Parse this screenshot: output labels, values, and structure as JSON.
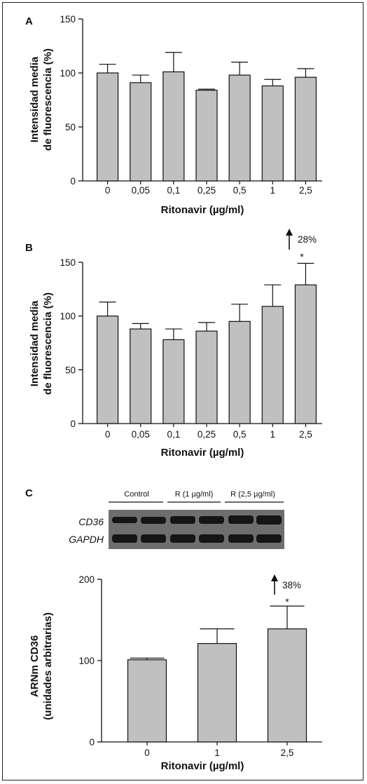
{
  "colors": {
    "bar_fill": "#c0c0c0",
    "axis": "#111111",
    "blot_bg": "#6e6e6e",
    "band": "#151515"
  },
  "charts": [
    {
      "panel": "A",
      "ylabel": [
        "Intensidad media",
        "de fluorescencia (%)"
      ],
      "xlabel": "Ritonavir (µg/ml)",
      "yticks": [
        "0",
        "50",
        "100",
        "150"
      ]
    },
    {
      "panel": "B",
      "ylabel": [
        "Intensidad media",
        "de fluorescencia (%)"
      ],
      "xlabel": "Ritonavir (µg/ml)",
      "yticks": [
        "0",
        "50",
        "100",
        "150"
      ],
      "annotation": {
        "text": "28%",
        "star": "*"
      }
    },
    {
      "panel": "C",
      "ylabel": [
        "ARNm CD36",
        "(unidades arbitrarias)"
      ],
      "xlabel": "Ritonavir (µg/ml)",
      "yticks": [
        "0",
        "100",
        "200"
      ],
      "annotation": {
        "text": "38%",
        "star": "*"
      },
      "blot": {
        "groups": [
          "Control",
          "R (1 µg/ml)",
          "R (2,5 µg/ml)"
        ],
        "rows": [
          "CD36",
          "GAPDH"
        ]
      }
    }
  ],
  "chart_data": [
    {
      "type": "bar",
      "categories": [
        "0",
        "0,05",
        "0,1",
        "0,25",
        "0,5",
        "1",
        "2,5"
      ],
      "values": [
        100,
        91,
        101,
        84,
        98,
        88,
        96
      ],
      "errors": [
        8,
        7,
        18,
        1,
        12,
        6,
        8
      ],
      "ylim": [
        0,
        150
      ],
      "xlabel": "Ritonavir (µg/ml)",
      "ylabel": "Intensidad media de fluorescencia (%)"
    },
    {
      "type": "bar",
      "categories": [
        "0",
        "0,05",
        "0,1",
        "0,25",
        "0,5",
        "1",
        "2,5"
      ],
      "values": [
        100,
        88,
        78,
        86,
        95,
        109,
        129
      ],
      "errors": [
        13,
        5,
        10,
        8,
        16,
        20,
        20
      ],
      "ylim": [
        0,
        150
      ],
      "xlabel": "Ritonavir (µg/ml)",
      "ylabel": "Intensidad media de fluorescencia (%)"
    },
    {
      "type": "bar",
      "categories": [
        "0",
        "1",
        "2,5"
      ],
      "values": [
        101,
        121,
        139
      ],
      "errors": [
        2,
        18,
        28
      ],
      "ylim": [
        0,
        200
      ],
      "xlabel": "Ritonavir (µg/ml)",
      "ylabel": "ARNm CD36 (unidades arbitrarias)"
    }
  ]
}
